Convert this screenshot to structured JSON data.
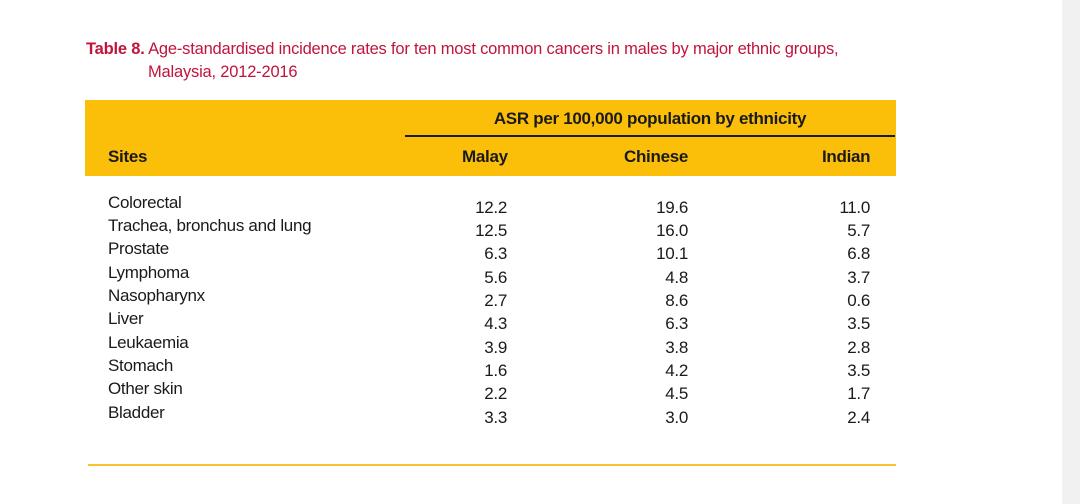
{
  "caption": {
    "label": "Table 8.",
    "line1": "Age-standardised incidence rates for ten most common cancers in males by major ethnic groups,",
    "line2": "Malaysia, 2012-2016"
  },
  "header": {
    "group_title": "ASR per 100,000 population by ethnicity",
    "sites": "Sites",
    "malay": "Malay",
    "chinese": "Chinese",
    "indian": "Indian"
  },
  "rows": [
    {
      "site": "Colorectal",
      "malay": "12.2",
      "chinese": "19.6",
      "indian": "11.0"
    },
    {
      "site": "Trachea, bronchus and lung",
      "malay": "12.5",
      "chinese": "16.0",
      "indian": "5.7"
    },
    {
      "site": "Prostate",
      "malay": "6.3",
      "chinese": "10.1",
      "indian": "6.8"
    },
    {
      "site": "Lymphoma",
      "malay": "5.6",
      "chinese": "4.8",
      "indian": "3.7"
    },
    {
      "site": "Nasopharynx",
      "malay": "2.7",
      "chinese": "8.6",
      "indian": "0.6"
    },
    {
      "site": "Liver",
      "malay": "4.3",
      "chinese": "6.3",
      "indian": "3.5"
    },
    {
      "site": "Leukaemia",
      "malay": "3.9",
      "chinese": "3.8",
      "indian": "2.8"
    },
    {
      "site": "Stomach",
      "malay": "1.6",
      "chinese": "4.2",
      "indian": "3.5"
    },
    {
      "site": "Other skin",
      "malay": "2.2",
      "chinese": "4.5",
      "indian": "1.7"
    },
    {
      "site": "Bladder",
      "malay": "3.3",
      "chinese": "3.0",
      "indian": "2.4"
    }
  ],
  "colors": {
    "caption": "#c0143c",
    "header_band": "#fbbf0a",
    "rule": "#fbc02d"
  }
}
